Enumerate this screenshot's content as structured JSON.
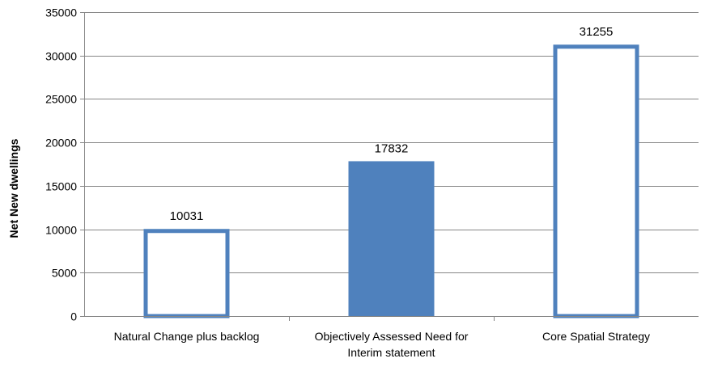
{
  "chart_data": {
    "type": "bar",
    "title": "",
    "xlabel": "",
    "ylabel": "Net New dwellings",
    "ylim": [
      0,
      35000
    ],
    "yticks": [
      0,
      5000,
      10000,
      15000,
      20000,
      25000,
      30000,
      35000
    ],
    "grid": true,
    "categories": [
      [
        "Natural Change plus backlog"
      ],
      [
        "Objectively Assessed Need for",
        "Interim statement"
      ],
      [
        "Core Spatial Strategy"
      ]
    ],
    "values": [
      10031,
      17832,
      31255
    ],
    "data_labels": [
      "10031",
      "17832",
      "31255"
    ],
    "bar_styles": [
      "outline",
      "filled",
      "outline"
    ],
    "colors": {
      "bar": "#4f81bd",
      "grid": "#868686",
      "axis": "#868686"
    }
  }
}
